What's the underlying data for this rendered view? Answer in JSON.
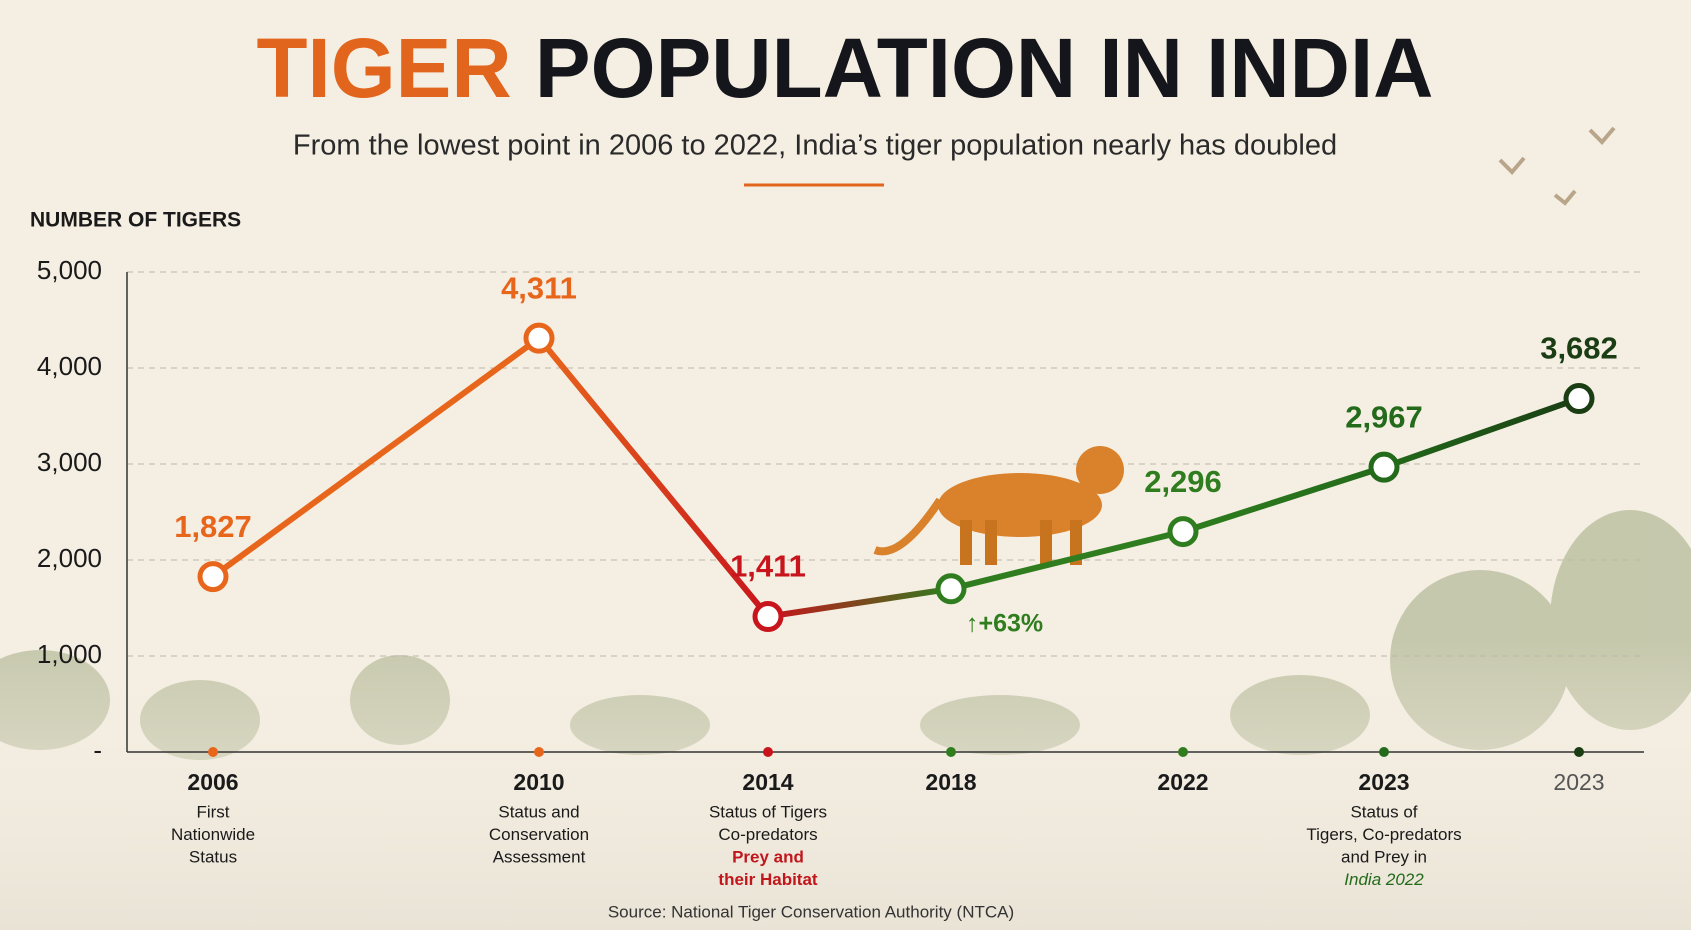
{
  "chart_data": {
    "type": "line",
    "title": [
      "TIGER",
      "POPULATION IN INDIA"
    ],
    "title_colors": [
      "#e2651d",
      "#14161c"
    ],
    "subtitle": "From the lowest point in 2006 to 2022, India’s tiger population nearly has doubled",
    "y_label": "NUMBER OF TIGERS",
    "categories": [
      "2006",
      "2010",
      "2014",
      "2018",
      "2022",
      "2023",
      "2023"
    ],
    "descriptions": [
      [
        "First",
        "Nationwide",
        "Status"
      ],
      [
        "Status and",
        "Conservation",
        "Assessment"
      ],
      [
        "Status of Tigers",
        "Co-predators",
        "Prey and",
        "their Habitat"
      ],
      null,
      null,
      [
        "Status of",
        "Tigers, Co-predators",
        "and Prey in",
        "India 2022"
      ],
      null
    ],
    "values": [
      1827,
      4311,
      1411,
      1700,
      2296,
      2967,
      3682
    ],
    "value_labels": [
      "1,827",
      "4,311",
      "1,411",
      null,
      "2,296",
      "2,967",
      "3,682"
    ],
    "colors": [
      "#e8661c",
      "#e8661c",
      "#c8141c",
      "#2f7d1e",
      "#2f7d1e",
      "#236a1a",
      "#1a3d14"
    ],
    "annotation": "↑+63%",
    "ylim": [
      0,
      5000
    ],
    "yticks": [
      {
        "value": 0,
        "label": "-"
      },
      {
        "value": 1000,
        "label": "1,000"
      },
      {
        "value": 2000,
        "label": "2,000"
      },
      {
        "value": 3000,
        "label": "3,000"
      },
      {
        "value": 4000,
        "label": "4,000"
      },
      {
        "value": 5000,
        "label": "5,000"
      }
    ],
    "grid": true,
    "source": "Source: National Tiger Conservation Authority (NTCA)"
  }
}
